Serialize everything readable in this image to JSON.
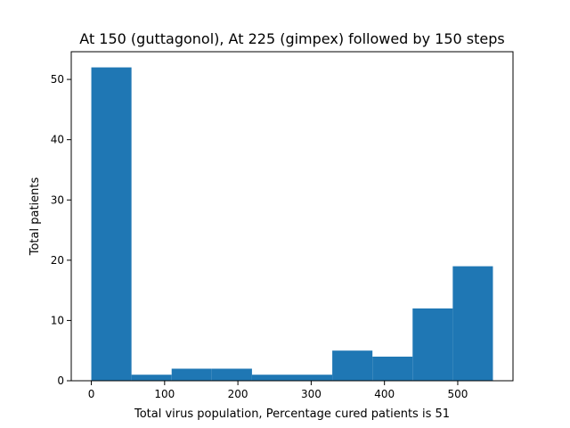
{
  "chart_data": {
    "type": "bar",
    "title": "At 150 (guttagonol), At 225 (gimpex) followed by 150 steps",
    "xlabel": "Total virus population, Percentage cured patients is 51",
    "ylabel": "Total patients",
    "bin_edges": [
      0,
      54.8,
      109.6,
      164.4,
      219.2,
      274,
      328.8,
      383.6,
      438.4,
      493.2,
      548
    ],
    "counts": [
      52,
      1,
      2,
      2,
      1,
      1,
      5,
      4,
      12,
      19
    ],
    "xlim": [
      -27.4,
      575.4
    ],
    "ylim": [
      0,
      54.6
    ],
    "xticks": [
      0,
      100,
      200,
      300,
      400,
      500
    ],
    "yticks": [
      0,
      10,
      20,
      30,
      40,
      50
    ],
    "bar_color": "#1f77b4",
    "grid": false
  }
}
